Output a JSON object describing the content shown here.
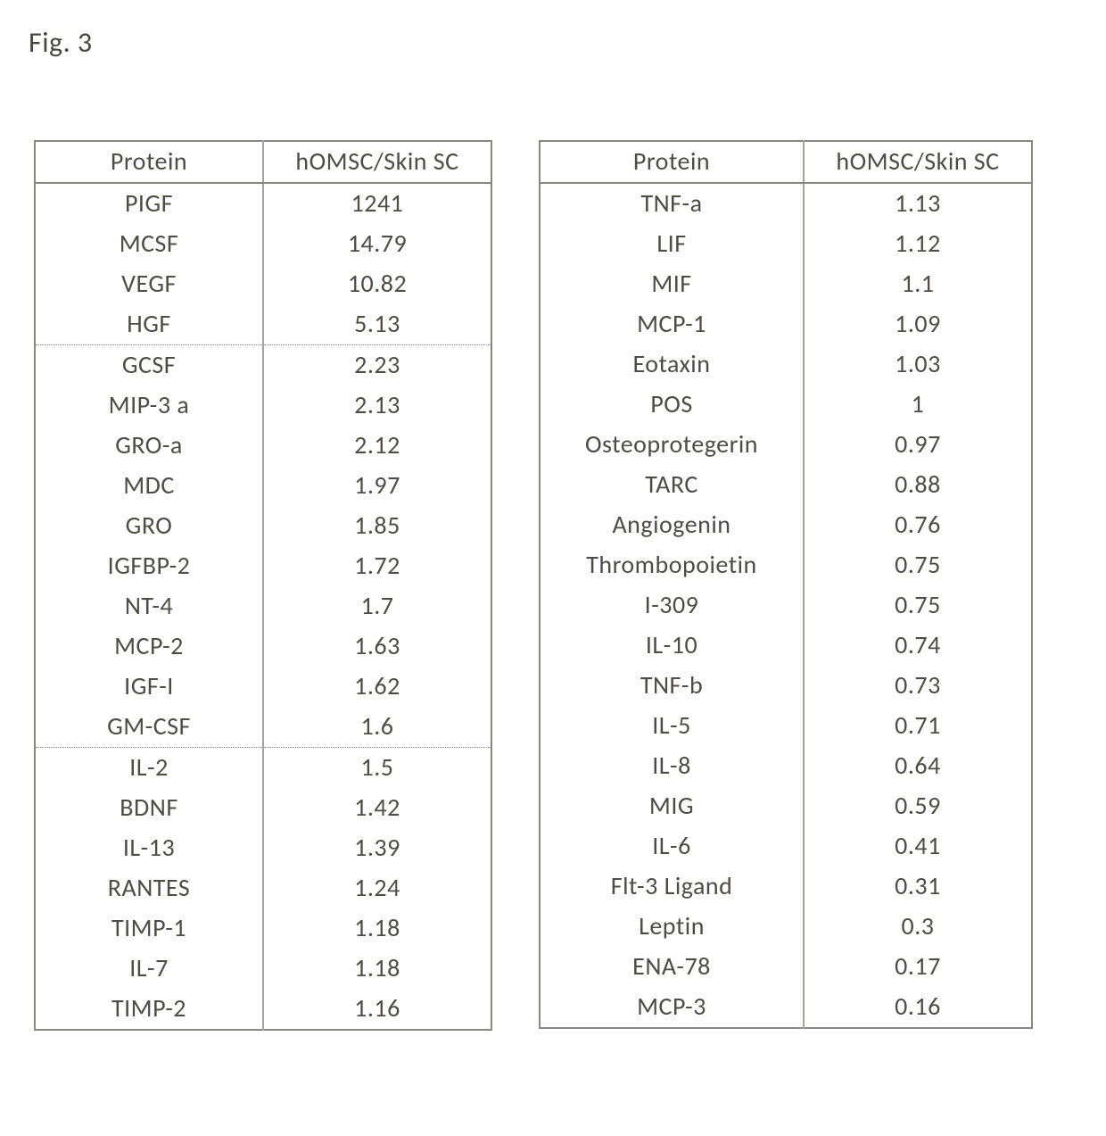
{
  "figure_label": "Fig. 3",
  "headers": {
    "protein": "Protein",
    "ratio": "hOMSC/Skin SC"
  },
  "table_left": {
    "rows": [
      {
        "protein": "PIGF",
        "ratio": "1241"
      },
      {
        "protein": "MCSF",
        "ratio": "14.79"
      },
      {
        "protein": "VEGF",
        "ratio": "10.82"
      },
      {
        "protein": "HGF",
        "ratio": "5.13"
      },
      {
        "protein": "GCSF",
        "ratio": "2.23"
      },
      {
        "protein": "MIP-3 a",
        "ratio": "2.13"
      },
      {
        "protein": "GRO-a",
        "ratio": "2.12"
      },
      {
        "protein": "MDC",
        "ratio": "1.97"
      },
      {
        "protein": "GRO",
        "ratio": "1.85"
      },
      {
        "protein": "IGFBP-2",
        "ratio": "1.72"
      },
      {
        "protein": "NT-4",
        "ratio": "1.7"
      },
      {
        "protein": "MCP-2",
        "ratio": "1.63"
      },
      {
        "protein": "IGF-I",
        "ratio": "1.62"
      },
      {
        "protein": "GM-CSF",
        "ratio": "1.6"
      },
      {
        "protein": "IL-2",
        "ratio": "1.5"
      },
      {
        "protein": "BDNF",
        "ratio": "1.42"
      },
      {
        "protein": "IL-13",
        "ratio": "1.39"
      },
      {
        "protein": "RANTES",
        "ratio": "1.24"
      },
      {
        "protein": "TIMP-1",
        "ratio": "1.18"
      },
      {
        "protein": "IL-7",
        "ratio": "1.18"
      },
      {
        "protein": "TIMP-2",
        "ratio": "1.16"
      }
    ],
    "section_starts": [
      4,
      14
    ]
  },
  "table_right": {
    "rows": [
      {
        "protein": "TNF-a",
        "ratio": "1.13"
      },
      {
        "protein": "LIF",
        "ratio": "1.12"
      },
      {
        "protein": "MIF",
        "ratio": "1.1"
      },
      {
        "protein": "MCP-1",
        "ratio": "1.09"
      },
      {
        "protein": "Eotaxin",
        "ratio": "1.03"
      },
      {
        "protein": "POS",
        "ratio": "1"
      },
      {
        "protein": "Osteoprotegerin",
        "ratio": "0.97"
      },
      {
        "protein": "TARC",
        "ratio": "0.88"
      },
      {
        "protein": "Angiogenin",
        "ratio": "0.76"
      },
      {
        "protein": "Thrombopoietin",
        "ratio": "0.75"
      },
      {
        "protein": "I-309",
        "ratio": "0.75"
      },
      {
        "protein": "IL-10",
        "ratio": "0.74"
      },
      {
        "protein": "TNF-b",
        "ratio": "0.73"
      },
      {
        "protein": "IL-5",
        "ratio": "0.71"
      },
      {
        "protein": "IL-8",
        "ratio": "0.64"
      },
      {
        "protein": "MIG",
        "ratio": "0.59"
      },
      {
        "protein": "IL-6",
        "ratio": "0.41"
      },
      {
        "protein": "Flt-3 Ligand",
        "ratio": "0.31"
      },
      {
        "protein": "Leptin",
        "ratio": "0.3"
      },
      {
        "protein": "ENA-78",
        "ratio": "0.17"
      },
      {
        "protein": "MCP-3",
        "ratio": "0.16"
      }
    ],
    "section_starts": []
  },
  "style": {
    "font_family": "Calibri",
    "text_color": "#4f4c47",
    "border_color": "#8a8783",
    "background_color": "#ffffff",
    "header_fontsize_pt": 21,
    "cell_fontsize_pt": 21
  }
}
